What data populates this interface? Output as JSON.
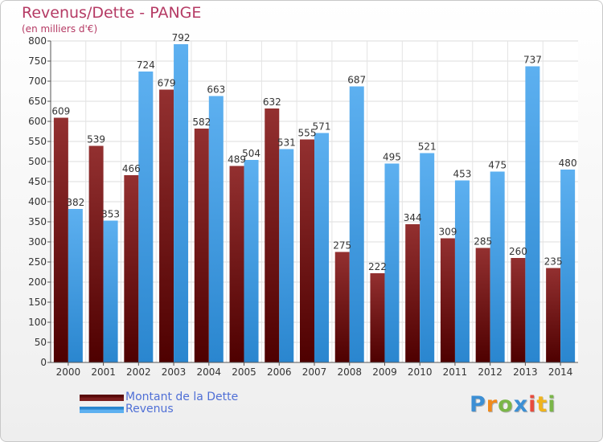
{
  "title": "Revenus/Dette - PANGE",
  "subtitle": "(en milliers d'€)",
  "chart_data": {
    "type": "bar",
    "categories": [
      "2000",
      "2001",
      "2002",
      "2003",
      "2004",
      "2005",
      "2006",
      "2007",
      "2008",
      "2009",
      "2010",
      "2011",
      "2012",
      "2013",
      "2014"
    ],
    "series": [
      {
        "name": "Montant de la Dette",
        "color": "#7a1e1e",
        "values": [
          609,
          539,
          466,
          679,
          582,
          489,
          632,
          555,
          275,
          222,
          344,
          309,
          285,
          260,
          235
        ]
      },
      {
        "name": "Revenus",
        "color": "#4ea3e6",
        "values": [
          382,
          353,
          724,
          792,
          663,
          504,
          531,
          571,
          687,
          495,
          521,
          453,
          475,
          737,
          480
        ]
      }
    ],
    "ylim": [
      0,
      800
    ],
    "yticks": [
      0,
      50,
      100,
      150,
      200,
      250,
      300,
      350,
      400,
      450,
      500,
      550,
      600,
      650,
      700,
      750,
      800
    ],
    "grid": true,
    "legend_position": "bottom-left"
  },
  "legend": {
    "items": [
      {
        "label": "Montant de la Dette",
        "color": "#7a1e1e"
      },
      {
        "label": "Revenus",
        "color": "#4ea3e6"
      }
    ]
  },
  "logo": {
    "letters": [
      "P",
      "r",
      "o",
      "x",
      "i",
      "t",
      "i"
    ],
    "colors": [
      "#3c8fd4",
      "#f08a1c",
      "#7ab648",
      "#3c8fd4",
      "#e84c3d",
      "#f0b41c",
      "#7ab648"
    ]
  }
}
